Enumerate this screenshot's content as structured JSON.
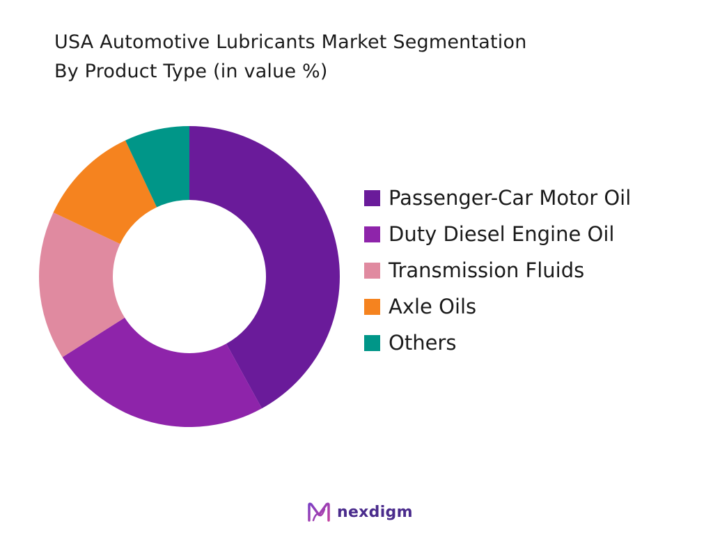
{
  "title_lines": [
    "USA Automotive Lubricants Market Segmentation",
    "By Product Type (in value %)"
  ],
  "chart_data": {
    "type": "pie",
    "donut": true,
    "title": "USA Automotive Lubricants Market Segmentation By Product Type (in value %)",
    "legend_position": "right",
    "categories": [
      "Passenger-Car Motor Oil",
      "Duty Diesel Engine Oil",
      "Transmission Fluids",
      "Axle Oils",
      "Others"
    ],
    "values": [
      42,
      24,
      16,
      11,
      7
    ],
    "colors": [
      "#6a1b9a",
      "#8e24aa",
      "#e08aa0",
      "#f5831f",
      "#009688"
    ]
  },
  "brand": {
    "name": "nexdigm",
    "logo_icon": "nexdigm-logo-icon",
    "color": "#4a2b8c",
    "logo_colors": [
      "#7b3fc4",
      "#c13fa0"
    ]
  }
}
